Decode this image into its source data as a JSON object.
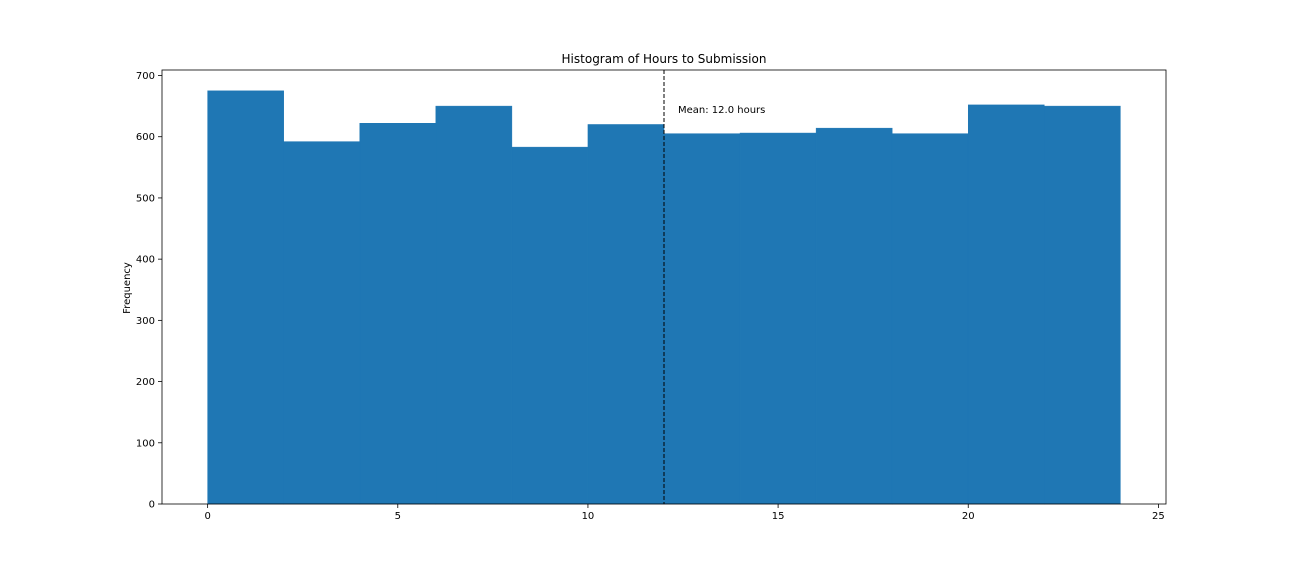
{
  "chart_data": {
    "type": "bar",
    "title": "Histogram of Hours to Submission",
    "xlabel": "",
    "ylabel": "Frequency",
    "xlim": [
      -1.2,
      25.2
    ],
    "ylim": [
      0,
      709
    ],
    "xticks": [
      0,
      5,
      10,
      15,
      20,
      25
    ],
    "yticks": [
      0,
      100,
      200,
      300,
      400,
      500,
      600,
      700
    ],
    "bin_edges": [
      0,
      2,
      4,
      6,
      8,
      10,
      12,
      14,
      16,
      18,
      20,
      22,
      24
    ],
    "values": [
      675,
      592,
      622,
      650,
      583,
      620,
      605,
      606,
      614,
      605,
      652,
      650
    ],
    "bar_color": "#1f77b4",
    "grid": false,
    "mean_line": {
      "x": 12.0,
      "label": "Mean: 12.0 hours",
      "color": "#000000",
      "style": "dashed"
    }
  }
}
